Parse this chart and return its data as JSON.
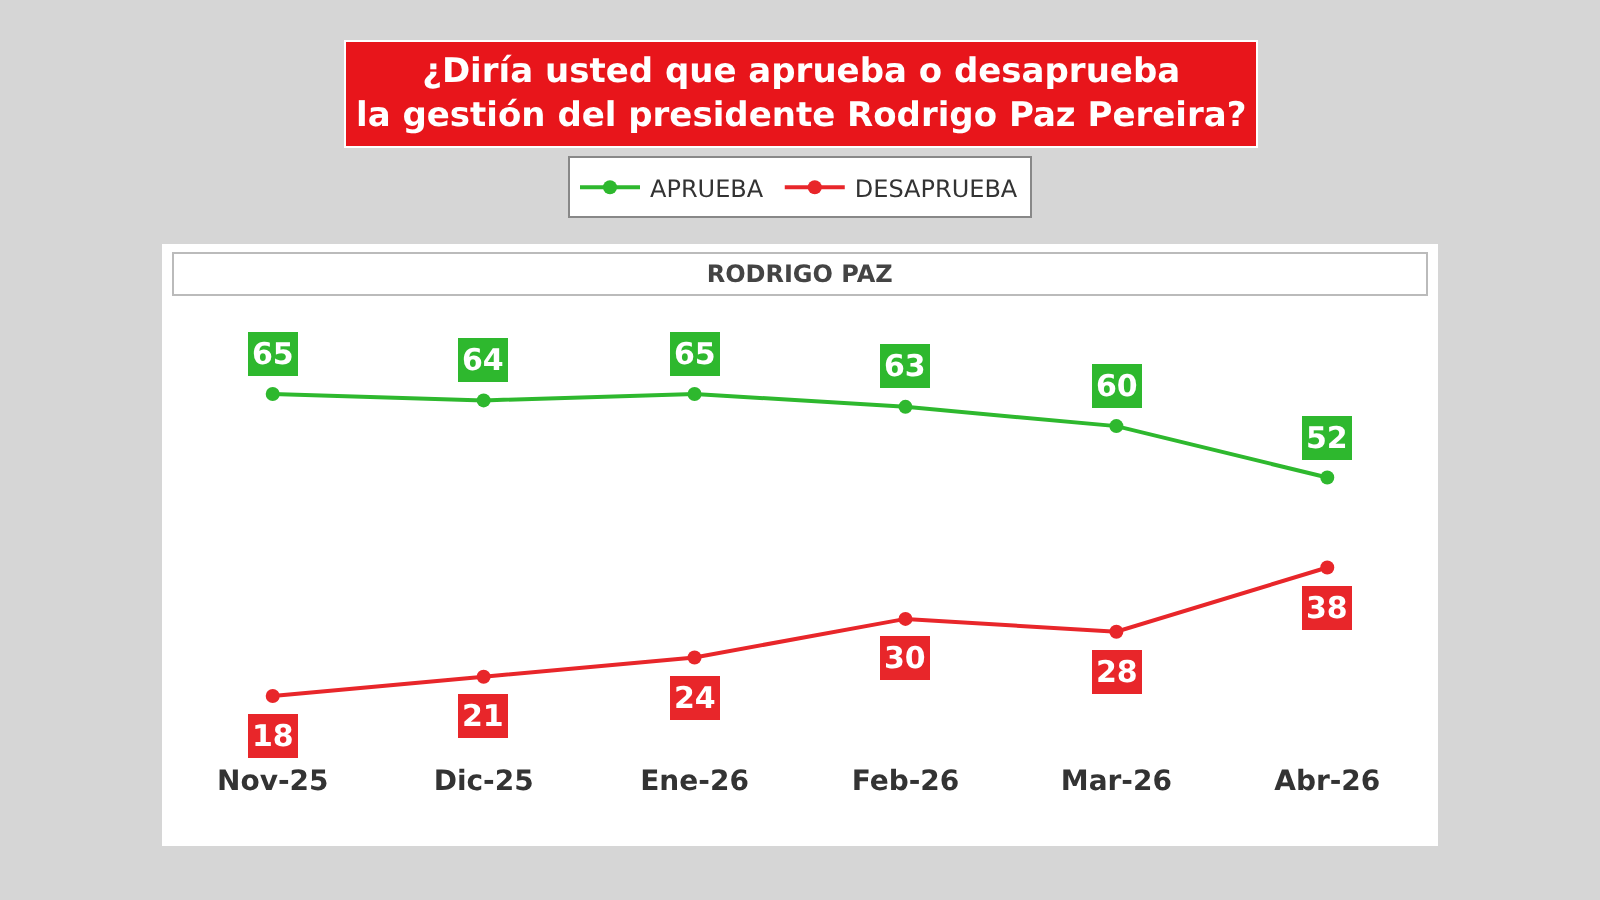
{
  "chart_data": {
    "type": "line",
    "title": "¿Diría usted que aprueba o desaprueba\nla gestión del presidente Rodrigo Paz Pereira?",
    "subtitle": "RODRIGO PAZ",
    "categories": [
      "Nov-25",
      "Dic-25",
      "Ene-26",
      "Feb-26",
      "Mar-26",
      "Abr-26"
    ],
    "series": [
      {
        "name": "APRUEBA",
        "color": "#2eb82e",
        "values": [
          65,
          64,
          65,
          63,
          60,
          52
        ]
      },
      {
        "name": "DESAPRUEBA",
        "color": "#e8262a",
        "values": [
          18,
          21,
          24,
          30,
          28,
          38
        ]
      }
    ],
    "data_labels": true,
    "tick_labels": "x",
    "legend": "top",
    "marker": "circle",
    "line_style": "solid"
  }
}
